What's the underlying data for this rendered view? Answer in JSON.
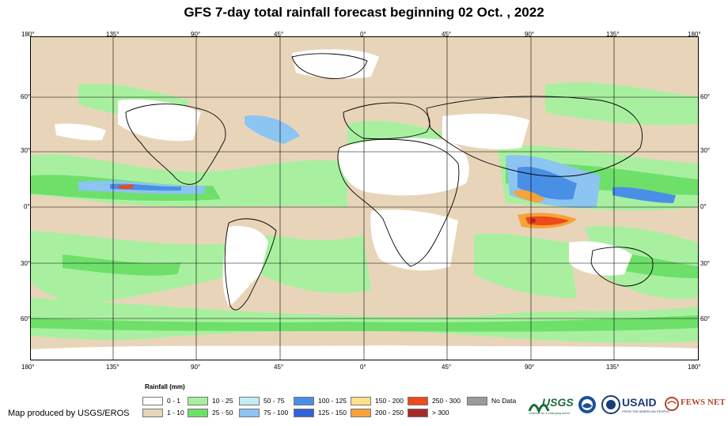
{
  "title": "GFS 7-day total rainfall forecast beginning 02 Oct. , 2022",
  "lon_ticks_top": [
    "180°",
    "135°",
    "90°",
    "45°",
    "0°",
    "45°",
    "90°",
    "135°",
    "180°"
  ],
  "lon_ticks_bottom": [
    "180°",
    "135°",
    "90°",
    "45°",
    "0°",
    "45°",
    "90°",
    "135°",
    "180°"
  ],
  "lat_ticks_left": [
    "60°",
    "30°",
    "0°",
    "30°",
    "60°"
  ],
  "lat_ticks_right": [
    "60°",
    "30°",
    "0°",
    "30°",
    "60°"
  ],
  "legend": {
    "title": "Rainfall (mm)",
    "items": [
      {
        "label": "0 - 1",
        "color": "#ffffff"
      },
      {
        "label": "1 - 10",
        "color": "#e8d5b9"
      },
      {
        "label": "10 - 25",
        "color": "#a8f0a0"
      },
      {
        "label": "25 - 50",
        "color": "#6ee06a"
      },
      {
        "label": "50 - 75",
        "color": "#bfeef5"
      },
      {
        "label": "75 - 100",
        "color": "#8cc4f2"
      },
      {
        "label": "100 - 125",
        "color": "#4a8fe6"
      },
      {
        "label": "125 - 150",
        "color": "#2f62d8"
      },
      {
        "label": "150 - 200",
        "color": "#fde08c"
      },
      {
        "label": "200 - 250",
        "color": "#f7a23a"
      },
      {
        "label": "250 - 300",
        "color": "#ee4a1a"
      },
      {
        "label": "> 300",
        "color": "#a52a2a"
      },
      {
        "label": "No Data",
        "color": "#9a9a9a"
      }
    ]
  },
  "credit": "Map produced by USGS/EROS",
  "logos": {
    "usgs": "USGS",
    "usgs_tagline": "science for a changing world",
    "usaid": "USAID",
    "usaid_tagline": "FROM THE AMERICAN PEOPLE",
    "fews": "FEWS NET"
  },
  "colors": {
    "white": "#ffffff",
    "tan": "#e8d5b9",
    "lightgreen": "#a8f0a0",
    "green": "#6ee06a",
    "lightblue": "#8cc4f2",
    "blue": "#4a8fe6",
    "darkblue": "#2f62d8",
    "orange": "#f7a23a",
    "red": "#ee4a1a",
    "darkred": "#a52a2a"
  }
}
